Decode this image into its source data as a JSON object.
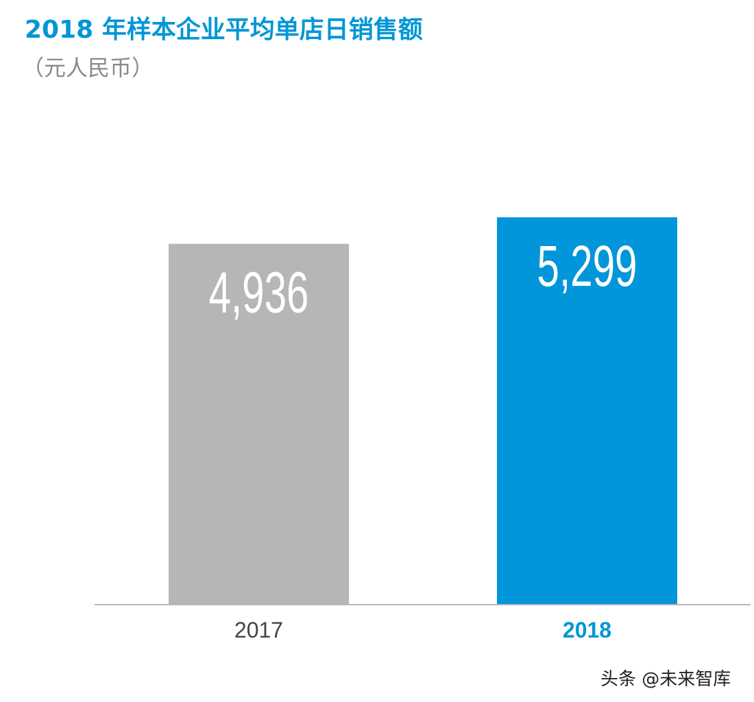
{
  "chart_data": {
    "type": "bar",
    "title": "2018 年样本企业平均单店日销售额",
    "subtitle": "（元人民币）",
    "categories": [
      "2017",
      "2018"
    ],
    "values": [
      4936,
      5299
    ],
    "value_labels": [
      "4,936",
      "5,299"
    ],
    "colors": [
      "#b5b7b6",
      "#0096d9"
    ],
    "category_label_colors": [
      "#444444",
      "#0096d6"
    ],
    "ylim": [
      0,
      5299
    ],
    "grid": false,
    "legend": "none"
  },
  "watermark": "头条 @未来智库"
}
